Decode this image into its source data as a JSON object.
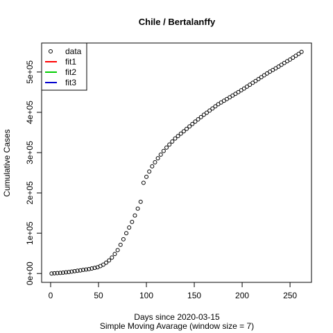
{
  "chart_data": {
    "type": "scatter",
    "title": "Chile / Bertalanffy",
    "x_label": "Days since 2020-03-15",
    "subtitle": "Simple Moving Avarage (window size = 7)",
    "y_label": "Cumulative Cases",
    "xlim": [
      -9.4,
      272.4
    ],
    "ylim": [
      -22000,
      572000
    ],
    "xticks": [
      0,
      50,
      100,
      150,
      200,
      250
    ],
    "yticks": [
      {
        "value": 0,
        "label": "0e+00"
      },
      {
        "value": 100000,
        "label": "1e+05"
      },
      {
        "value": 200000,
        "label": "2e+05"
      },
      {
        "value": 300000,
        "label": "3e+05"
      },
      {
        "value": 400000,
        "label": "4e+05"
      },
      {
        "value": 500000,
        "label": "5e+05"
      }
    ],
    "legend_position": "topleft",
    "series": [
      {
        "name": "data",
        "color": "#000000",
        "marker": "circle",
        "x": [
          1,
          4,
          7,
          10,
          13,
          16,
          19,
          22,
          25,
          28,
          31,
          34,
          37,
          40,
          43,
          46,
          49,
          52,
          55,
          58,
          61,
          64,
          67,
          70,
          73,
          76,
          79,
          82,
          85,
          88,
          91,
          94,
          97,
          100,
          103,
          106,
          109,
          112,
          115,
          118,
          121,
          124,
          127,
          130,
          133,
          136,
          139,
          142,
          145,
          148,
          151,
          154,
          157,
          160,
          163,
          166,
          169,
          172,
          175,
          178,
          181,
          184,
          187,
          190,
          193,
          196,
          199,
          202,
          205,
          208,
          211,
          214,
          217,
          220,
          223,
          226,
          229,
          232,
          235,
          238,
          241,
          244,
          247,
          250,
          253,
          256,
          259,
          262
        ],
        "values": [
          0,
          500,
          1000,
          1500,
          2200,
          3000,
          3700,
          4700,
          5700,
          6800,
          7800,
          8900,
          9900,
          11000,
          12500,
          14000,
          15500,
          18400,
          22000,
          26800,
          32400,
          39600,
          48400,
          58000,
          71200,
          85000,
          100000,
          114000,
          128000,
          144000,
          161000,
          178000,
          225000,
          240000,
          253000,
          266000,
          276000,
          286000,
          295000,
          304000,
          312500,
          320000,
          327500,
          335000,
          341000,
          347000,
          353000,
          359000,
          365000,
          371000,
          377000,
          382700,
          388300,
          394000,
          399000,
          404400,
          409600,
          414800,
          420000,
          424300,
          428600,
          432900,
          437300,
          441600,
          445900,
          450200,
          454600,
          459100,
          463800,
          468500,
          473200,
          477800,
          482500,
          487200,
          491900,
          496400,
          500900,
          505000,
          509200,
          513500,
          518000,
          522400,
          526700,
          531000,
          535700,
          540300,
          545000,
          550000
        ]
      },
      {
        "name": "fit1",
        "color": "#ff0000",
        "marker": "line"
      },
      {
        "name": "fit2",
        "color": "#00cd00",
        "marker": "line"
      },
      {
        "name": "fit3",
        "color": "#0000cd",
        "marker": "line"
      }
    ]
  }
}
